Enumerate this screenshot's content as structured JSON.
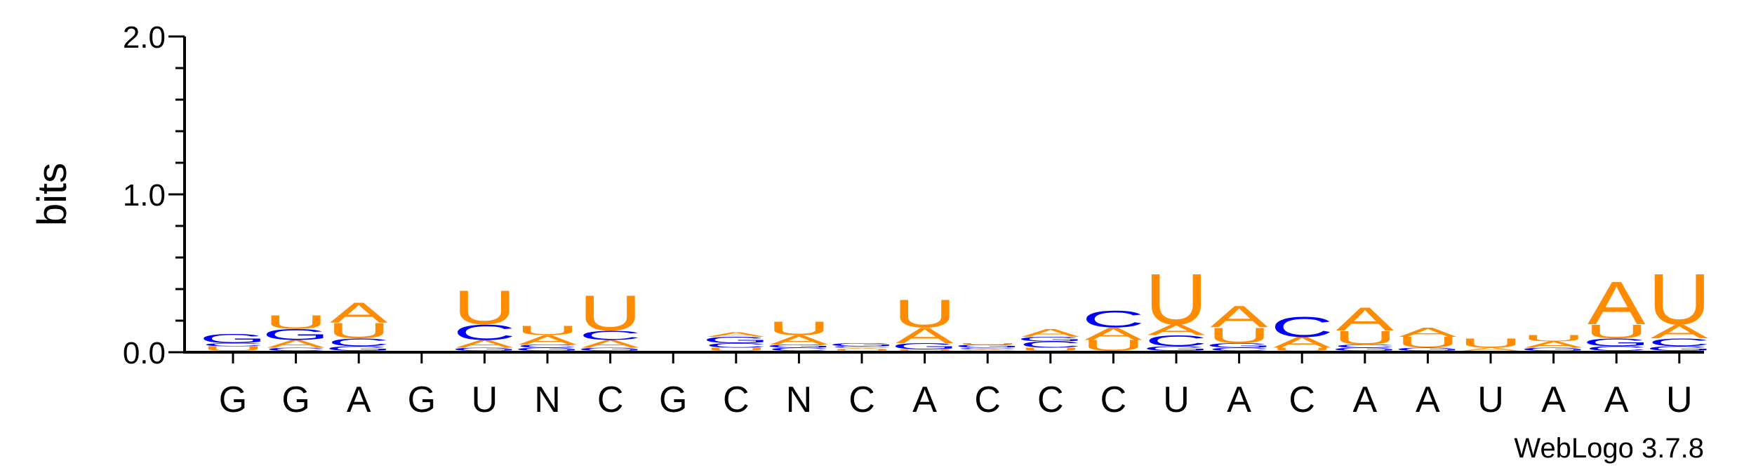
{
  "chart_data": {
    "type": "sequence-logo",
    "ylabel": "bits",
    "ylim": [
      0,
      2.0
    ],
    "yticks": [
      "0.0",
      "1.0",
      "2.0"
    ],
    "credit": "WebLogo 3.7.8",
    "colors": {
      "A": "#ff8c00",
      "U": "#ff8c00",
      "C": "#0000ff",
      "G": "#0000ff",
      "N": "#000000"
    },
    "consensus": [
      "G",
      "G",
      "A",
      "G",
      "U",
      "N",
      "C",
      "G",
      "C",
      "N",
      "C",
      "A",
      "C",
      "C",
      "C",
      "U",
      "A",
      "C",
      "A",
      "A",
      "U",
      "A",
      "A",
      "U"
    ],
    "positions": [
      [
        [
          "U",
          0.03
        ],
        [
          "C",
          0.02
        ],
        [
          "G",
          0.06
        ]
      ],
      [
        [
          "C",
          0.02
        ],
        [
          "A",
          0.05
        ],
        [
          "G",
          0.07
        ],
        [
          "U",
          0.09
        ]
      ],
      [
        [
          "G",
          0.03
        ],
        [
          "C",
          0.05
        ],
        [
          "U",
          0.1
        ],
        [
          "A",
          0.13
        ]
      ],
      [],
      [
        [
          "G",
          0.02
        ],
        [
          "A",
          0.05
        ],
        [
          "C",
          0.1
        ],
        [
          "U",
          0.22
        ]
      ],
      [
        [
          "G",
          0.02
        ],
        [
          "C",
          0.02
        ],
        [
          "A",
          0.06
        ],
        [
          "U",
          0.06
        ]
      ],
      [
        [
          "G",
          0.02
        ],
        [
          "A",
          0.05
        ],
        [
          "C",
          0.06
        ],
        [
          "U",
          0.23
        ]
      ],
      [],
      [
        [
          "U",
          0.02
        ],
        [
          "C",
          0.03
        ],
        [
          "G",
          0.04
        ],
        [
          "A",
          0.03
        ]
      ],
      [
        [
          "C",
          0.02
        ],
        [
          "G",
          0.02
        ],
        [
          "A",
          0.06
        ],
        [
          "U",
          0.09
        ]
      ],
      [
        [
          "U",
          0.01
        ],
        [
          "A",
          0.01
        ],
        [
          "C",
          0.01
        ],
        [
          "G",
          0.02
        ]
      ],
      [
        [
          "U",
          0.01
        ],
        [
          "G",
          0.04
        ],
        [
          "A",
          0.1
        ],
        [
          "U",
          0.18
        ]
      ],
      [
        [
          "A",
          0.01
        ],
        [
          "C",
          0.01
        ],
        [
          "G",
          0.02
        ],
        [
          "U",
          0.01
        ]
      ],
      [
        [
          "U",
          0.02
        ],
        [
          "C",
          0.04
        ],
        [
          "G",
          0.03
        ],
        [
          "A",
          0.05
        ]
      ],
      [
        [
          "U",
          0.07
        ],
        [
          "A",
          0.08
        ],
        [
          "C",
          0.11
        ]
      ],
      [
        [
          "G",
          0.03
        ],
        [
          "C",
          0.07
        ],
        [
          "A",
          0.07
        ],
        [
          "U",
          0.33
        ]
      ],
      [
        [
          "C",
          0.02
        ],
        [
          "G",
          0.03
        ],
        [
          "U",
          0.1
        ],
        [
          "A",
          0.14
        ]
      ],
      [
        [
          "U",
          0.02
        ],
        [
          "A",
          0.07
        ],
        [
          "C",
          0.13
        ]
      ],
      [
        [
          "G",
          0.02
        ],
        [
          "C",
          0.02
        ],
        [
          "U",
          0.09
        ],
        [
          "A",
          0.15
        ]
      ],
      [
        [
          "G",
          0.02
        ],
        [
          "U",
          0.07
        ],
        [
          "A",
          0.06
        ]
      ],
      [
        [
          "A",
          0.02
        ],
        [
          "U",
          0.06
        ]
      ],
      [
        [
          "G",
          0.02
        ],
        [
          "A",
          0.04
        ],
        [
          "U",
          0.04
        ]
      ],
      [
        [
          "C",
          0.03
        ],
        [
          "G",
          0.05
        ],
        [
          "U",
          0.09
        ],
        [
          "A",
          0.28
        ]
      ],
      [
        [
          "G",
          0.03
        ],
        [
          "C",
          0.05
        ],
        [
          "A",
          0.09
        ],
        [
          "U",
          0.33
        ]
      ]
    ]
  }
}
